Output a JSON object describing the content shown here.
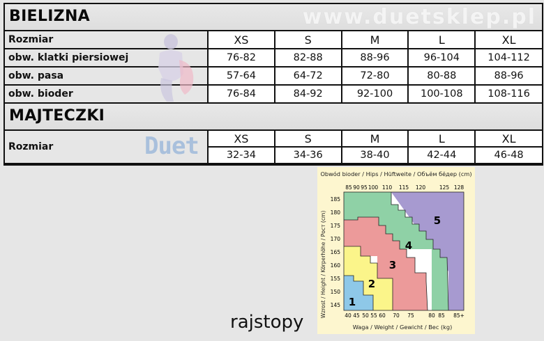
{
  "watermark": "www.duetsklep.pl",
  "bielizna": {
    "title": "BIELIZNA",
    "header": [
      "Rozmiar",
      "XS",
      "S",
      "M",
      "L",
      "XL"
    ],
    "rows": [
      {
        "label": "obw. klatki piersiowej",
        "values": [
          "76-82",
          "82-88",
          "88-96",
          "96-104",
          "104-112"
        ]
      },
      {
        "label": "obw. pasa",
        "values": [
          "57-64",
          "64-72",
          "72-80",
          "80-88",
          "88-96"
        ]
      },
      {
        "label": "obw. bioder",
        "values": [
          "76-84",
          "84-92",
          "92-100",
          "100-108",
          "108-116"
        ]
      }
    ]
  },
  "majteczki": {
    "title": "MAJTECZKI",
    "row_label": "Rozmiar",
    "logo_text": "Duet",
    "sizes": [
      "XS",
      "S",
      "M",
      "L",
      "XL"
    ],
    "values": [
      "32-34",
      "34-36",
      "38-40",
      "42-44",
      "46-48"
    ]
  },
  "chart": {
    "title": "Obwód bioder / Hips / Hüftweite / Объём бёдер (cm)",
    "top_ticks": [
      "85",
      "90",
      "95",
      "100",
      "110",
      "115",
      "120",
      "125",
      "128"
    ],
    "y_label": "Wzrost / Height / Körperhöhe / Рост (cm)",
    "y_ticks": [
      "185",
      "180",
      "175",
      "170",
      "165",
      "160",
      "155",
      "150",
      "145"
    ],
    "bottom_ticks": [
      "40",
      "45",
      "50",
      "55",
      "60",
      "70",
      "75",
      "80",
      "85",
      "85+"
    ],
    "x_label": "Waga / Weight / Gewicht / Вес (kg)",
    "zones": [
      {
        "label": "1",
        "color": "#8ec8e8"
      },
      {
        "label": "2",
        "color": "#fbf58a"
      },
      {
        "label": "3",
        "color": "#ec9a9a"
      },
      {
        "label": "4",
        "color": "#8fd1a6"
      },
      {
        "label": "5",
        "color": "#a79ad0"
      }
    ]
  },
  "caption": "rajstopy"
}
